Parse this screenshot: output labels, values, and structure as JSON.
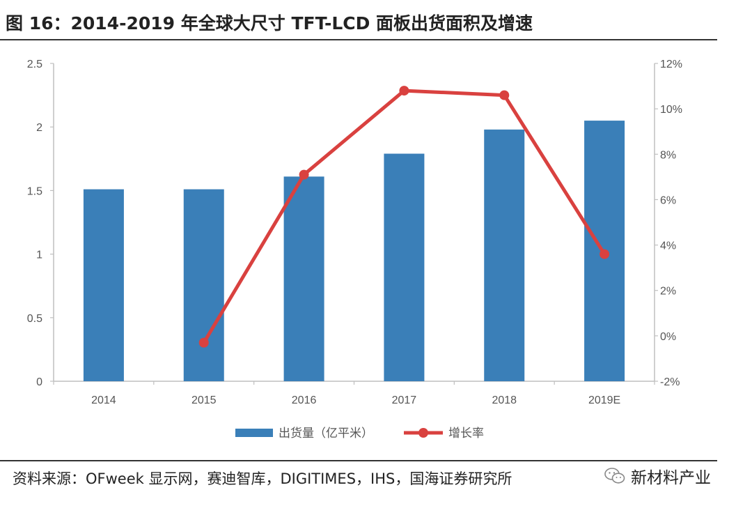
{
  "figure_title": "图 16：2014-2019 年全球大尺寸 TFT-LCD 面板出货面积及增速",
  "source_note": "资料来源：OFweek 显示网，赛迪智库，DIGITIMES，IHS，国海证券研究所",
  "watermark": {
    "text": "新材料产业",
    "icon": "wechat-icon"
  },
  "colors": {
    "bar": "#3a7fb8",
    "line": "#d9413f",
    "axis": "#bfbfbf",
    "text": "#555555"
  },
  "chart_data": {
    "type": "bar",
    "categories": [
      "2014",
      "2015",
      "2016",
      "2017",
      "2018",
      "2019E"
    ],
    "series": [
      {
        "name": "出货量（亿平米）",
        "type": "bar",
        "axis": "left",
        "values": [
          1.51,
          1.51,
          1.61,
          1.79,
          1.98,
          2.05
        ]
      },
      {
        "name": "增长率",
        "type": "line",
        "axis": "right",
        "values": [
          null,
          -0.3,
          7.1,
          10.8,
          10.6,
          3.6
        ]
      }
    ],
    "y_left": {
      "ylim": [
        0,
        2.5
      ],
      "ticks": [
        "0",
        "0.5",
        "1",
        "1.5",
        "2",
        "2.5"
      ]
    },
    "y_right": {
      "ylim": [
        -2,
        12
      ],
      "ticks": [
        "-2%",
        "0%",
        "2%",
        "4%",
        "6%",
        "8%",
        "10%",
        "12%"
      ]
    },
    "grid": false,
    "legend_position": "bottom"
  }
}
